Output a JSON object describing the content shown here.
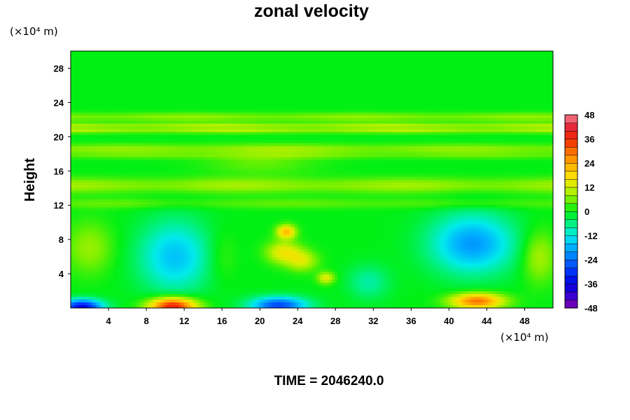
{
  "chart_data": {
    "type": "heatmap",
    "title": "zonal velocity",
    "ylabel": "Height",
    "y_units": "(×10⁴ m)",
    "x_units": "(×10⁴ m)",
    "footer": "TIME = 2046240.0",
    "xlim": [
      0,
      51
    ],
    "ylim": [
      0,
      30
    ],
    "x_ticks": [
      4,
      8,
      12,
      16,
      20,
      24,
      28,
      32,
      36,
      40,
      44,
      48
    ],
    "x_tick_labels": [
      "4",
      "8",
      "12",
      "16",
      "20",
      "24",
      "28",
      "32",
      "36",
      "40",
      "44",
      "48"
    ],
    "y_ticks": [
      4,
      8,
      12,
      16,
      20,
      24,
      28
    ],
    "y_tick_labels": [
      "4",
      "8",
      "12",
      "16",
      "20",
      "24",
      "28"
    ],
    "colorbar": {
      "min": -48,
      "max": 48,
      "step": 4,
      "ticks": [
        -48,
        -36,
        -24,
        -12,
        0,
        12,
        24,
        36,
        48
      ],
      "tick_labels": [
        "-48",
        "-36",
        "-24",
        "-12",
        "0",
        "12",
        "24",
        "36",
        "48"
      ]
    },
    "bands": [
      {
        "y": 22.3,
        "h": 0.5,
        "v": 8
      },
      {
        "y": 21.3,
        "h": 0.35,
        "v": 10
      },
      {
        "y": 20.7,
        "h": 0.3,
        "v": 10
      },
      {
        "y": 18.6,
        "h": 0.55,
        "v": 8
      },
      {
        "y": 17.8,
        "h": 0.4,
        "v": 5
      },
      {
        "y": 14.3,
        "h": 0.9,
        "v": 9
      },
      {
        "y": 12.2,
        "h": 0.6,
        "v": 5
      }
    ],
    "features": [
      {
        "x": 1.2,
        "y": 0.1,
        "sx": 2.2,
        "sy": 0.9,
        "v": -36
      },
      {
        "x": 2.0,
        "y": 7.0,
        "sx": 2.5,
        "sy": 3.0,
        "v": 8
      },
      {
        "x": 10.8,
        "y": 0.2,
        "sx": 2.5,
        "sy": 1.0,
        "v": 40
      },
      {
        "x": 11.0,
        "y": 6.0,
        "sx": 3.8,
        "sy": 4.2,
        "v": -16
      },
      {
        "x": 16.0,
        "y": 6.0,
        "sx": 1.6,
        "sy": 3.0,
        "v": 4
      },
      {
        "x": 22.0,
        "y": 0.3,
        "sx": 3.0,
        "sy": 1.0,
        "v": -28
      },
      {
        "x": 22.8,
        "y": 8.9,
        "sx": 1.0,
        "sy": 0.8,
        "v": 22
      },
      {
        "x": 22.5,
        "y": 6.5,
        "sx": 1.8,
        "sy": 1.3,
        "v": 15
      },
      {
        "x": 24.5,
        "y": 5.5,
        "sx": 1.6,
        "sy": 1.2,
        "v": 12
      },
      {
        "x": 27.0,
        "y": 3.5,
        "sx": 0.9,
        "sy": 0.7,
        "v": 14
      },
      {
        "x": 31.5,
        "y": 3.0,
        "sx": 2.2,
        "sy": 2.0,
        "v": -8
      },
      {
        "x": 42.5,
        "y": 7.5,
        "sx": 4.5,
        "sy": 3.5,
        "v": -20
      },
      {
        "x": 43.0,
        "y": 0.8,
        "sx": 2.8,
        "sy": 0.9,
        "v": 30
      },
      {
        "x": 49.5,
        "y": 6.0,
        "sx": 1.8,
        "sy": 3.0,
        "v": 10
      },
      {
        "x": 20.0,
        "y": 17.0,
        "sx": 6.0,
        "sy": 1.5,
        "v": 5
      }
    ]
  }
}
